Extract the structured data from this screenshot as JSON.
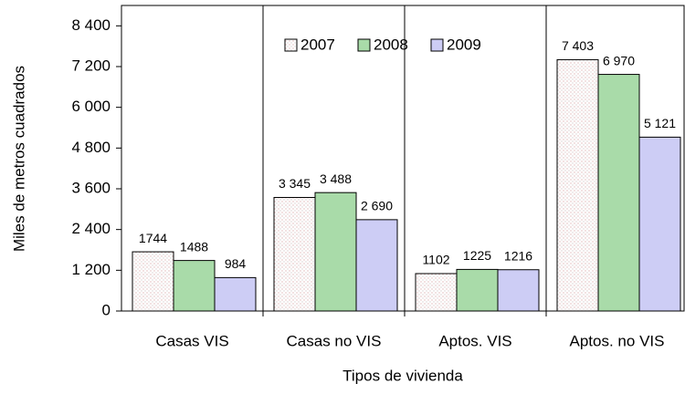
{
  "chart_data": {
    "type": "bar",
    "categories": [
      "Casas VIS",
      "Casas no VIS",
      "Aptos. VIS",
      "Aptos. no VIS"
    ],
    "series": [
      {
        "name": "2007",
        "color": "#f7eeee",
        "values": [
          1744,
          3345,
          1102,
          7403
        ],
        "value_labels": [
          "1744",
          "3 345",
          "1102",
          "7 403"
        ]
      },
      {
        "name": "2008",
        "color": "#a9dba9",
        "values": [
          1488,
          3488,
          1225,
          6970
        ],
        "value_labels": [
          "1488",
          "3 488",
          "1225",
          "6 970"
        ]
      },
      {
        "name": "2009",
        "color": "#cdcdf5",
        "values": [
          984,
          2690,
          1216,
          5121
        ],
        "value_labels": [
          "984",
          "2 690",
          "1216",
          "5 121"
        ]
      }
    ],
    "ylabel": "Miles de metros cuadrados",
    "xlabel": "Tipos de vivienda",
    "ylim": [
      0,
      9000
    ],
    "yticks": [
      0,
      {
        "value": 1200,
        "label": "1 200"
      },
      {
        "value": 2400,
        "label": "2 400"
      },
      {
        "value": 3600,
        "label": "3 600"
      },
      {
        "value": 4800,
        "label": "4 800"
      },
      {
        "value": 6000,
        "label": "6 000"
      },
      {
        "value": 7200,
        "label": "7 200"
      },
      {
        "value": 8400,
        "label": "8 400"
      }
    ],
    "legend": "top"
  }
}
